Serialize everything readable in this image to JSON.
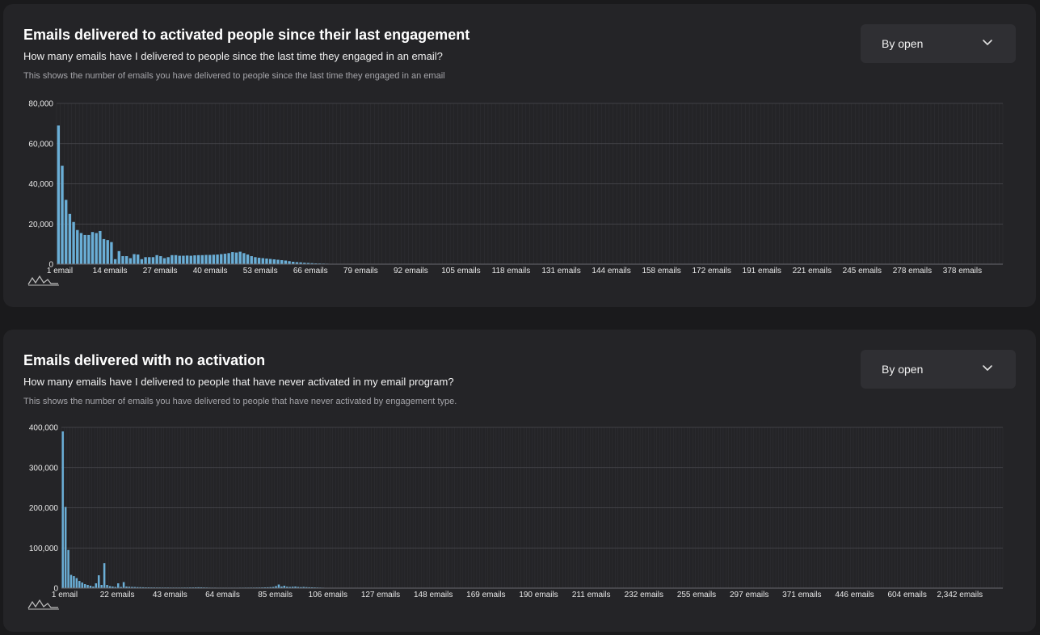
{
  "panels": [
    {
      "title": "Emails delivered to activated people since their last engagement",
      "question": "How many emails have I delivered to people since the last time they engaged in an email?",
      "description": "This shows the number of emails you have delivered to people since the last time they engaged in an email",
      "dropdown": {
        "selected": "By open",
        "icon": "chevron-down-icon"
      },
      "logo_icon": "chart-logo-icon"
    },
    {
      "title": "Emails delivered with no activation",
      "question": "How many emails have I delivered to people that have never activated in my email program?",
      "description": "This shows the number of emails you have delivered to people that have never activated by engagement type.",
      "dropdown": {
        "selected": "By open",
        "icon": "chevron-down-icon"
      },
      "logo_icon": "chart-logo-icon"
    }
  ],
  "colors": {
    "bar": "#6aaed6",
    "grid": "#3d3d42",
    "card": "#242427",
    "page": "#1a1a1c"
  },
  "chart_data": [
    {
      "type": "bar",
      "grid": true,
      "ylim": [
        0,
        80000
      ],
      "y_ticks": [
        "80,000",
        "60,000",
        "40,000",
        "20,000",
        "0"
      ],
      "x_tick_labels": [
        "1 email",
        "14 emails",
        "27 emails",
        "40 emails",
        "53 emails",
        "66 emails",
        "79 emails",
        "92 emails",
        "105 emails",
        "118 emails",
        "131 emails",
        "144 emails",
        "158 emails",
        "172 emails",
        "191 emails",
        "221 emails",
        "245 emails",
        "278 emails",
        "378 emails"
      ],
      "num_categories": 250,
      "values": [
        69000,
        49000,
        32000,
        25000,
        21000,
        17000,
        15500,
        14500,
        14500,
        16000,
        15500,
        16500,
        12500,
        12000,
        11000,
        2500,
        6500,
        4000,
        4000,
        3000,
        5000,
        4800,
        2500,
        3500,
        3500,
        3500,
        4500,
        4000,
        3000,
        3500,
        4500,
        4500,
        4200,
        4200,
        4300,
        4200,
        4400,
        4500,
        4500,
        4600,
        4600,
        4700,
        4800,
        5000,
        5200,
        5500,
        6000,
        5800,
        6200,
        5500,
        4800,
        4000,
        3500,
        3200,
        3000,
        2800,
        2600,
        2400,
        2200,
        2000,
        1800,
        1500,
        1200,
        1000,
        900,
        700,
        600,
        500,
        400,
        350,
        300,
        250,
        200,
        180,
        150,
        130,
        110,
        100,
        90,
        80,
        70,
        60,
        50,
        45,
        40
      ]
    },
    {
      "type": "bar",
      "grid": true,
      "ylim": [
        0,
        400000
      ],
      "y_ticks": [
        "400,000",
        "300,000",
        "200,000",
        "100,000",
        "0"
      ],
      "x_tick_labels": [
        "1 email",
        "22 emails",
        "43 emails",
        "64 emails",
        "85 emails",
        "106 emails",
        "127 emails",
        "148 emails",
        "169 emails",
        "190 emails",
        "211 emails",
        "232 emails",
        "255 emails",
        "297 emails",
        "371 emails",
        "446 emails",
        "604 emails",
        "2,342 emails"
      ],
      "num_categories": 340,
      "values": [
        390000,
        202000,
        95000,
        33000,
        30000,
        25000,
        18000,
        14000,
        10000,
        8000,
        6000,
        4000,
        12000,
        32000,
        8000,
        62000,
        8000,
        5000,
        4000,
        3000,
        12000,
        3000,
        15000,
        4000,
        3500,
        3000,
        2800,
        2500,
        2400,
        2200,
        2000,
        2000,
        1800,
        1800,
        1700,
        1700,
        1600,
        1600,
        1600,
        1500,
        1500,
        1500,
        1500,
        1500,
        1600,
        1600,
        1800,
        1800,
        2000,
        2200,
        2000,
        1800,
        1600,
        1400,
        1300,
        1300,
        1200,
        1200,
        1200,
        1200,
        1200,
        1200,
        1200,
        1200,
        1300,
        1300,
        1400,
        1400,
        1500,
        1500,
        1600,
        1700,
        1800,
        2000,
        2200,
        2500,
        3000,
        5000,
        9000,
        4000,
        6000,
        3500,
        3000,
        3500,
        4000,
        3000,
        2500,
        3000,
        2500,
        2200,
        2000,
        1800,
        1600,
        1400,
        1200,
        1000,
        900,
        800,
        700,
        600,
        500,
        450,
        400,
        350,
        300,
        250,
        200,
        180,
        160,
        140,
        120,
        100
      ]
    }
  ]
}
